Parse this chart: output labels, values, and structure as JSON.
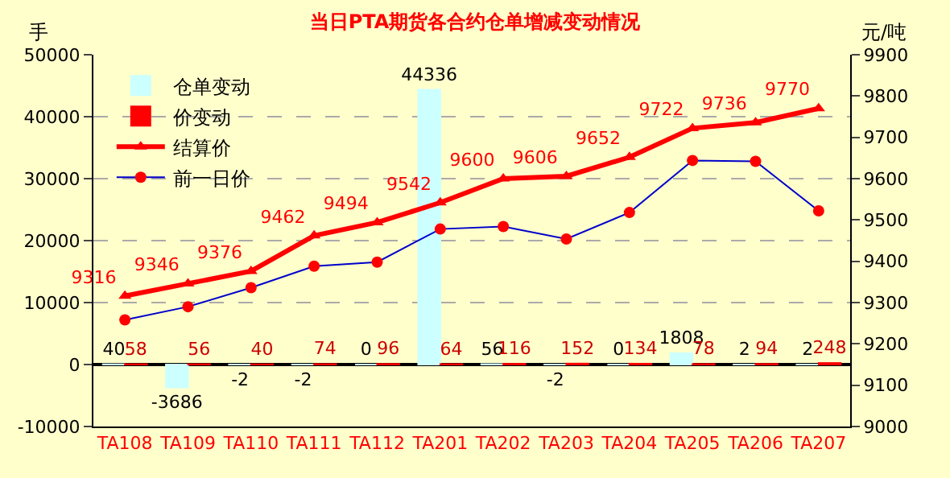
{
  "chart_data": {
    "type": "bar",
    "title": "当日PTA期货各合约仓单增减变动情况",
    "ylabel": "手",
    "y2label": "元/吨",
    "categories": [
      "TA108",
      "TA109",
      "TA110",
      "TA111",
      "TA112",
      "TA201",
      "TA202",
      "TA203",
      "TA204",
      "TA205",
      "TA206",
      "TA207"
    ],
    "series": [
      {
        "name": "仓单变动",
        "color": "#ccffff",
        "value_labels": [
          "40",
          "-3686",
          "-2",
          "-2",
          "0",
          "44336",
          "56",
          "-2",
          "0",
          "1808",
          "2",
          "2"
        ],
        "values": [
          40,
          -3686,
          -2,
          -2,
          0,
          44336,
          56,
          -2,
          0,
          1808,
          2,
          2
        ]
      },
      {
        "name": "价变动",
        "color": "#ff0000",
        "value_labels": [
          "58",
          "56",
          "40",
          "74",
          "96",
          "64",
          "116",
          "152",
          "134",
          "78",
          "94",
          "248"
        ],
        "values": [
          58,
          56,
          40,
          74,
          96,
          64,
          116,
          152,
          134,
          78,
          94,
          248
        ]
      },
      {
        "name": "结算价",
        "type": "line",
        "axis": "y2",
        "marker": "triangle",
        "color": "#ff0000",
        "value_labels": [
          "9316",
          "9346",
          "9376",
          "9462",
          "9494",
          "9542",
          "9600",
          "9606",
          "9652",
          "9722",
          "9736",
          "9770"
        ],
        "values": [
          9316,
          9346,
          9376,
          9462,
          9494,
          9542,
          9600,
          9606,
          9652,
          9722,
          9736,
          9770
        ]
      },
      {
        "name": "前一日价",
        "type": "line",
        "axis": "y2",
        "marker": "circle",
        "color": "#0000cc",
        "values": [
          9258,
          9290,
          9336,
          9388,
          9398,
          9478,
          9484,
          9454,
          9518,
          9644,
          9642,
          9522
        ]
      }
    ],
    "ylim": [
      -10000,
      50000
    ],
    "yticks": [
      -10000,
      0,
      10000,
      20000,
      30000,
      40000,
      50000
    ],
    "y2lim": [
      9000,
      9900
    ],
    "y2ticks": [
      9000,
      9100,
      9200,
      9300,
      9400,
      9500,
      9600,
      9700,
      9800,
      9900
    ],
    "grid": "y",
    "legend": "top left"
  }
}
